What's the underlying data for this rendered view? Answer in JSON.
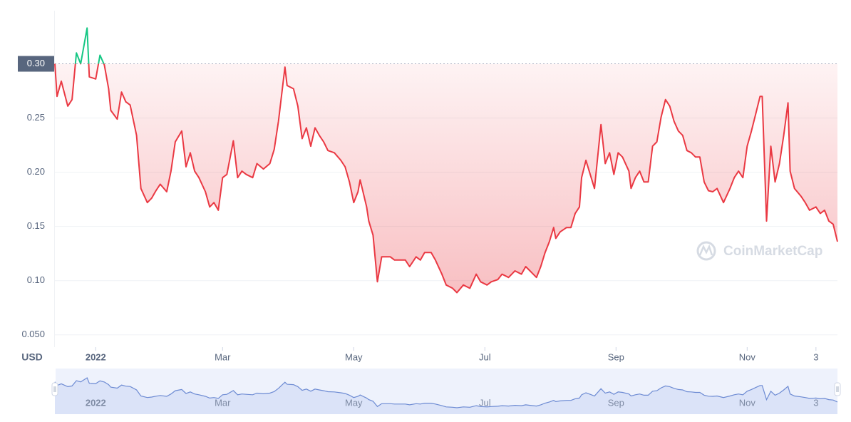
{
  "chart_data": {
    "type": "line",
    "currency": "USD",
    "watermark": "CoinMarketCap",
    "baseline": 0.3,
    "colors": {
      "up": "#16c784",
      "down": "#ea3943"
    },
    "xlim": [
      0,
      364
    ],
    "xticks": [
      {
        "value": 19,
        "label": "2022"
      },
      {
        "value": 78,
        "label": "Mar"
      },
      {
        "value": 139,
        "label": "May"
      },
      {
        "value": 200,
        "label": "Jul"
      },
      {
        "value": 261,
        "label": "Sep"
      },
      {
        "value": 322,
        "label": "Nov"
      },
      {
        "value": 354,
        "label": "3"
      }
    ],
    "ylim": [
      0.04,
      0.349
    ],
    "yticks": [
      {
        "value": 0.05,
        "label": "0.050"
      },
      {
        "value": 0.1,
        "label": "0.10"
      },
      0.15,
      {
        "value": 0.2,
        "label": "0.20"
      },
      0.25,
      {
        "value": 0.3,
        "label": "0.30"
      }
    ],
    "grid": true,
    "x": [
      0,
      1,
      3,
      6,
      8,
      10,
      12,
      15,
      16,
      19,
      21,
      23,
      25,
      26,
      29,
      31,
      33,
      35,
      38,
      40,
      43,
      45,
      47,
      49,
      52,
      54,
      56,
      59,
      61,
      63,
      65,
      67,
      70,
      72,
      74,
      76,
      78,
      80,
      83,
      85,
      87,
      89,
      92,
      94,
      97,
      100,
      102,
      104,
      106,
      107,
      108,
      111,
      113,
      115,
      117,
      119,
      121,
      123,
      125,
      127,
      130,
      133,
      135,
      137,
      139,
      141,
      142,
      145,
      146,
      148,
      150,
      152,
      156,
      158,
      163,
      165,
      168,
      170,
      172,
      175,
      177,
      180,
      182,
      185,
      187,
      190,
      193,
      196,
      198,
      201,
      203,
      206,
      208,
      211,
      214,
      217,
      219,
      221,
      224,
      226,
      228,
      230,
      232,
      233,
      235,
      238,
      240,
      242,
      244,
      245,
      247,
      249,
      251,
      254,
      256,
      258,
      260,
      262,
      264,
      267,
      268,
      270,
      272,
      274,
      276,
      278,
      280,
      282,
      284,
      286,
      288,
      290,
      292,
      294,
      296,
      298,
      300,
      302,
      304,
      306,
      308,
      311,
      314,
      316,
      318,
      320,
      322,
      324,
      326,
      328,
      329,
      331,
      333,
      335,
      337,
      339,
      341,
      342,
      344,
      347,
      349,
      351,
      354,
      356,
      358,
      360,
      362,
      364
    ],
    "values": [
      0.3,
      0.27,
      0.284,
      0.261,
      0.267,
      0.31,
      0.3,
      0.333,
      0.288,
      0.286,
      0.308,
      0.299,
      0.277,
      0.257,
      0.249,
      0.274,
      0.265,
      0.262,
      0.234,
      0.185,
      0.172,
      0.176,
      0.183,
      0.189,
      0.182,
      0.201,
      0.228,
      0.238,
      0.205,
      0.218,
      0.201,
      0.195,
      0.182,
      0.168,
      0.172,
      0.165,
      0.195,
      0.198,
      0.229,
      0.195,
      0.201,
      0.198,
      0.195,
      0.208,
      0.203,
      0.208,
      0.221,
      0.247,
      0.28,
      0.297,
      0.28,
      0.277,
      0.261,
      0.231,
      0.241,
      0.224,
      0.241,
      0.234,
      0.228,
      0.22,
      0.218,
      0.211,
      0.205,
      0.191,
      0.172,
      0.182,
      0.193,
      0.168,
      0.155,
      0.142,
      0.099,
      0.122,
      0.122,
      0.119,
      0.119,
      0.113,
      0.122,
      0.119,
      0.126,
      0.126,
      0.119,
      0.106,
      0.096,
      0.093,
      0.089,
      0.096,
      0.093,
      0.106,
      0.099,
      0.096,
      0.099,
      0.101,
      0.106,
      0.103,
      0.109,
      0.106,
      0.113,
      0.109,
      0.103,
      0.113,
      0.126,
      0.136,
      0.149,
      0.139,
      0.145,
      0.149,
      0.149,
      0.162,
      0.168,
      0.195,
      0.211,
      0.198,
      0.185,
      0.244,
      0.208,
      0.218,
      0.198,
      0.218,
      0.214,
      0.201,
      0.185,
      0.195,
      0.201,
      0.191,
      0.191,
      0.224,
      0.228,
      0.251,
      0.267,
      0.261,
      0.247,
      0.238,
      0.234,
      0.22,
      0.218,
      0.214,
      0.214,
      0.191,
      0.183,
      0.182,
      0.185,
      0.172,
      0.185,
      0.195,
      0.201,
      0.195,
      0.224,
      0.238,
      0.254,
      0.27,
      0.27,
      0.155,
      0.224,
      0.191,
      0.208,
      0.234,
      0.264,
      0.201,
      0.185,
      0.178,
      0.172,
      0.165,
      0.168,
      0.162,
      0.165,
      0.155,
      0.152,
      0.136
    ]
  }
}
